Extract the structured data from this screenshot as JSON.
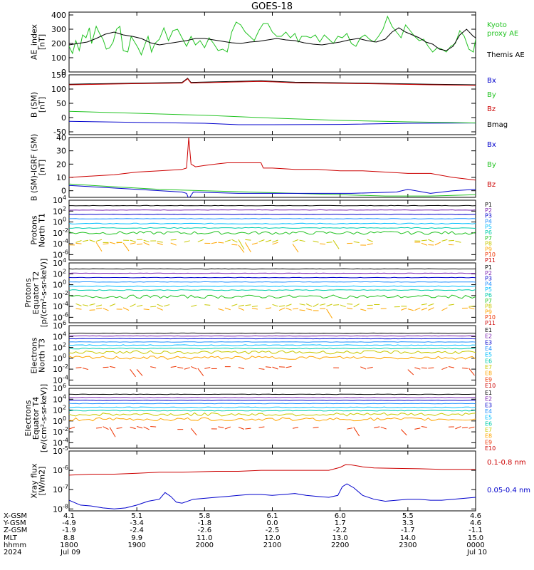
{
  "title": "GOES-18",
  "chart_data": [
    {
      "id": "ae",
      "type": "line",
      "ylabel": [
        "AE_index",
        "[nT]"
      ],
      "ylim": [
        0,
        420
      ],
      "yticks": [
        0,
        100,
        200,
        300,
        400
      ],
      "ytick_labels": [
        "0",
        "100",
        "200",
        "300",
        "400"
      ],
      "legend": [
        {
          "text": "Kyoto",
          "color": "#22c322"
        },
        {
          "text": "proxy AE",
          "color": "#22c322"
        },
        {
          "text": "Themis AE",
          "color": "#000000"
        }
      ],
      "series": [
        {
          "name": "Kyoto proxy AE",
          "color": "#22c322",
          "x": [
            0,
            3,
            6,
            9,
            12,
            15,
            18,
            20,
            24,
            27,
            30,
            33,
            36,
            39,
            42,
            45,
            48,
            52,
            55,
            58,
            61,
            64,
            67,
            70,
            73,
            76,
            80,
            84,
            88,
            92,
            96,
            100,
            104,
            108,
            112,
            116,
            120,
            124,
            128,
            132,
            136,
            140,
            144,
            148,
            152,
            156,
            160,
            164,
            168,
            172,
            176,
            180,
            184,
            188,
            192,
            196,
            200,
            203,
            206,
            210,
            214,
            218,
            222,
            226,
            230,
            234,
            238,
            242,
            246,
            250,
            254,
            258,
            262,
            266,
            270,
            274,
            278,
            282,
            286,
            290,
            294,
            298,
            302,
            306,
            310,
            314,
            318,
            322,
            326,
            330,
            334,
            338,
            342,
            346,
            350,
            354,
            358,
            360
          ],
          "y": [
            180,
            130,
            220,
            150,
            260,
            240,
            310,
            200,
            320,
            270,
            230,
            160,
            170,
            210,
            300,
            320,
            150,
            140,
            250,
            210,
            170,
            120,
            190,
            250,
            140,
            200,
            230,
            310,
            220,
            290,
            300,
            240,
            180,
            250,
            190,
            220,
            170,
            240,
            200,
            150,
            160,
            140,
            280,
            350,
            330,
            280,
            250,
            220,
            290,
            340,
            340,
            280,
            250,
            250,
            280,
            240,
            270,
            210,
            250,
            250,
            240,
            260,
            210,
            260,
            230,
            200,
            250,
            240,
            270,
            200,
            180,
            240,
            260,
            230,
            210,
            250,
            300,
            390,
            320,
            280,
            240,
            330,
            290,
            250,
            220,
            230,
            180,
            140,
            170,
            160,
            140,
            180,
            200,
            290,
            250,
            160,
            140,
            230
          ]
        },
        {
          "name": "Themis AE",
          "color": "#000000",
          "x": [
            0,
            8,
            16,
            24,
            32,
            40,
            48,
            56,
            64,
            72,
            80,
            88,
            96,
            104,
            112,
            120,
            128,
            136,
            144,
            152,
            160,
            168,
            176,
            184,
            192,
            200,
            208,
            216,
            224,
            232,
            240,
            248,
            256,
            264,
            272,
            280,
            286,
            292,
            298,
            304,
            310,
            316,
            322,
            328,
            334,
            340,
            346,
            352,
            358,
            360
          ],
          "y": [
            190,
            200,
            210,
            235,
            265,
            280,
            260,
            250,
            235,
            205,
            190,
            200,
            210,
            220,
            235,
            235,
            225,
            215,
            205,
            200,
            210,
            215,
            225,
            235,
            225,
            220,
            205,
            195,
            190,
            200,
            210,
            225,
            235,
            220,
            210,
            230,
            280,
            310,
            280,
            260,
            240,
            210,
            195,
            160,
            150,
            180,
            260,
            300,
            250,
            240
          ]
        }
      ]
    },
    {
      "id": "bsm",
      "type": "line",
      "ylabel": [
        "B (SM)",
        "[nT]"
      ],
      "ylim": [
        -60,
        150
      ],
      "yticks": [
        -50,
        0,
        50,
        100,
        150
      ],
      "ytick_labels": [
        "-50",
        "0",
        "50",
        "100",
        "150"
      ],
      "legend": [
        {
          "text": "Bx",
          "color": "#0000cc"
        },
        {
          "text": "By",
          "color": "#22c322"
        },
        {
          "text": "Bz",
          "color": "#cc0000"
        },
        {
          "text": "Bmag",
          "color": "#000000"
        }
      ],
      "series": [
        {
          "name": "Bx",
          "color": "#0000cc",
          "x": [
            0,
            60,
            120,
            150,
            180,
            240,
            300,
            360
          ],
          "y": [
            -13,
            -17,
            -20,
            -25,
            -25,
            -24,
            -20,
            -19
          ]
        },
        {
          "name": "By",
          "color": "#22c322",
          "x": [
            0,
            60,
            120,
            180,
            240,
            300,
            360
          ],
          "y": [
            22,
            15,
            8,
            -2,
            -10,
            -15,
            -19
          ]
        },
        {
          "name": "Bmag",
          "color": "#000000",
          "x": [
            0,
            60,
            100,
            105,
            108,
            115,
            170,
            200,
            260,
            320,
            360
          ],
          "y": [
            117,
            121,
            123,
            138,
            123,
            124,
            129,
            124,
            121,
            117,
            115
          ]
        },
        {
          "name": "Bz",
          "color": "#cc0000",
          "x": [
            0,
            60,
            100,
            105,
            108,
            115,
            170,
            200,
            260,
            320,
            360
          ],
          "y": [
            115,
            119,
            121,
            136,
            121,
            122,
            127,
            122,
            119,
            115,
            113
          ]
        }
      ]
    },
    {
      "id": "bigrf",
      "type": "line",
      "ylabel": [
        "B (SM)-IGRF (SM)",
        "[nT]"
      ],
      "ylim": [
        -5,
        40
      ],
      "yticks": [
        0,
        10,
        20,
        30,
        40
      ],
      "ytick_labels": [
        "0",
        "10",
        "20",
        "30",
        "40"
      ],
      "legend": [
        {
          "text": "Bx",
          "color": "#0000cc"
        },
        {
          "text": "By",
          "color": "#22c322"
        },
        {
          "text": "Bz",
          "color": "#cc0000"
        }
      ],
      "series": [
        {
          "name": "Bz",
          "color": "#cc0000",
          "x": [
            0,
            20,
            40,
            60,
            80,
            100,
            104,
            106,
            108,
            112,
            120,
            130,
            140,
            160,
            170,
            172,
            180,
            200,
            220,
            240,
            260,
            280,
            300,
            320,
            340,
            350,
            360
          ],
          "y": [
            10,
            11,
            12,
            14,
            15,
            16,
            17,
            40,
            20,
            18,
            19,
            20,
            21,
            21,
            21,
            17,
            17,
            16,
            16,
            15,
            15,
            14,
            13,
            13,
            10,
            9,
            8
          ]
        },
        {
          "name": "By",
          "color": "#22c322",
          "x": [
            0,
            40,
            80,
            120,
            160,
            200,
            240,
            280,
            320,
            360
          ],
          "y": [
            5,
            3,
            1,
            0,
            -1,
            -2,
            -3,
            -4,
            -4,
            -3
          ]
        },
        {
          "name": "Bx",
          "color": "#0000cc",
          "x": [
            0,
            60,
            100,
            104,
            106,
            110,
            150,
            200,
            250,
            290,
            300,
            320,
            340,
            360
          ],
          "y": [
            4,
            1,
            -1,
            -2,
            -6,
            -1,
            -2,
            -2,
            -2,
            -1,
            1,
            -2,
            0,
            1
          ]
        }
      ]
    },
    {
      "id": "protons-t1",
      "type": "line",
      "log": true,
      "ylabel": [
        "Protons",
        "North T1"
      ],
      "ylim_exp": [
        -7,
        4
      ],
      "ytick_exps": [
        -6,
        -4,
        -2,
        0,
        2,
        4
      ],
      "ytick_labels": [
        "10",
        "10",
        "10",
        "10",
        "10",
        "10"
      ],
      "ytick_sups": [
        "-6",
        "-4",
        "-2",
        "0",
        "2",
        "4"
      ],
      "legend": [
        "P1",
        "P2",
        "P3",
        "P4",
        "P5",
        "P6",
        "P7",
        "P8",
        "P9",
        "P10",
        "P11"
      ],
      "channel_colors": [
        "#000000",
        "#7a1fb0",
        "#0000cc",
        "#1e90ff",
        "#00bfff",
        "#00ccaa",
        "#22c322",
        "#c8c800",
        "#ffa500",
        "#ee3300",
        "#cc0000"
      ],
      "channel_levels_exp": [
        3.0,
        2.2,
        1.4,
        0.6,
        -0.3,
        -1.1,
        -2.0,
        -3.5,
        -4.0,
        null,
        null
      ]
    },
    {
      "id": "protons-t2",
      "type": "line",
      "log": true,
      "ylabel": [
        "Protons",
        "Equator T2",
        "[p/(cm²-s-sr-keV)]"
      ],
      "ylim_exp": [
        -7,
        4
      ],
      "ytick_exps": [
        -6,
        -4,
        -2,
        0,
        2,
        4
      ],
      "ytick_labels": [
        "10",
        "10",
        "10",
        "10",
        "10",
        "10"
      ],
      "ytick_sups": [
        "-6",
        "-4",
        "-2",
        "0",
        "2",
        "4"
      ],
      "legend": [
        "P1",
        "P2",
        "P3",
        "P4",
        "P5",
        "P6",
        "P7",
        "P8",
        "P9",
        "P10",
        "P11"
      ],
      "channel_colors": [
        "#000000",
        "#7a1fb0",
        "#0000cc",
        "#1e90ff",
        "#00bfff",
        "#00ccaa",
        "#22c322",
        "#c8c800",
        "#ffa500",
        "#ee3300",
        "#cc0000"
      ],
      "channel_levels_exp": [
        2.9,
        2.1,
        1.3,
        0.5,
        -0.3,
        -1.0,
        -2.2,
        -3.8,
        -4.5,
        null,
        null
      ]
    },
    {
      "id": "electrons-t3",
      "type": "line",
      "log": true,
      "ylabel": [
        "Electrons",
        "North T3"
      ],
      "ylim_exp": [
        -5,
        6
      ],
      "ytick_exps": [
        -4,
        -2,
        0,
        2,
        4,
        6
      ],
      "ytick_labels": [
        "10",
        "10",
        "10",
        "10",
        "10",
        "10"
      ],
      "ytick_sups": [
        "-4",
        "-2",
        "0",
        "2",
        "4",
        "6"
      ],
      "legend": [
        "E1",
        "E2",
        "E3",
        "E4",
        "E5",
        "E6",
        "E7",
        "E8",
        "E9",
        "E10"
      ],
      "channel_colors": [
        "#000000",
        "#7a1fb0",
        "#0000cc",
        "#1e90ff",
        "#00bfff",
        "#00ccaa",
        "#c8c800",
        "#ffa500",
        "#ee3300",
        "#cc0000"
      ],
      "channel_levels_exp": [
        4.6,
        4.1,
        3.6,
        3.0,
        2.4,
        1.8,
        1.1,
        0.1,
        -1.8,
        null
      ]
    },
    {
      "id": "electrons-t4",
      "type": "line",
      "log": true,
      "ylabel": [
        "Electrons",
        "Equator T4",
        "[e/(cm²-s-sr-keV)]"
      ],
      "ylim_exp": [
        -5,
        6
      ],
      "ytick_exps": [
        -4,
        -2,
        0,
        2,
        4,
        6
      ],
      "ytick_labels": [
        "10",
        "10",
        "10",
        "10",
        "10",
        "10"
      ],
      "ytick_sups": [
        "-4",
        "-2",
        "0",
        "2",
        "4",
        "6"
      ],
      "legend": [
        "E1",
        "E2",
        "E3",
        "E4",
        "E5",
        "E6",
        "E7",
        "E8",
        "E9",
        "E10"
      ],
      "channel_colors": [
        "#000000",
        "#7a1fb0",
        "#0000cc",
        "#1e90ff",
        "#00bfff",
        "#00ccaa",
        "#c8c800",
        "#ffa500",
        "#ee3300",
        "#cc0000"
      ],
      "channel_levels_exp": [
        4.9,
        4.3,
        3.8,
        3.2,
        2.5,
        1.9,
        1.2,
        0.3,
        -1.3,
        null
      ]
    },
    {
      "id": "xray",
      "type": "line",
      "log": true,
      "ylabel": [
        "Xray  flux",
        "[W/m2]"
      ],
      "ylim_exp": [
        -8.1,
        -5
      ],
      "ytick_exps": [
        -8,
        -7,
        -6,
        -5
      ],
      "ytick_labels": [
        "10",
        "10",
        "10",
        "10"
      ],
      "ytick_sups": [
        "-8",
        "-7",
        "-6",
        "-5"
      ],
      "legend": [
        {
          "text": "0.1-0.8 nm",
          "color": "#cc0000"
        },
        {
          "text": "0.05-0.4 nm",
          "color": "#0000cc"
        }
      ],
      "series": [
        {
          "name": "0.1-0.8 nm",
          "color": "#cc0000",
          "x": [
            0,
            20,
            40,
            60,
            80,
            100,
            130,
            150,
            170,
            190,
            210,
            230,
            240,
            245,
            250,
            260,
            270,
            290,
            310,
            330,
            350,
            360
          ],
          "y": [
            -6.25,
            -6.2,
            -6.2,
            -6.15,
            -6.1,
            -6.1,
            -6.05,
            -6.05,
            -6.0,
            -6.0,
            -6.0,
            -6.0,
            -5.85,
            -5.7,
            -5.72,
            -5.82,
            -5.88,
            -5.9,
            -5.92,
            -5.95,
            -5.95,
            -5.95
          ]
        },
        {
          "name": "0.05-0.4 nm",
          "color": "#0000cc",
          "x": [
            0,
            10,
            20,
            30,
            40,
            50,
            60,
            70,
            80,
            85,
            90,
            95,
            100,
            110,
            120,
            130,
            140,
            150,
            160,
            170,
            180,
            190,
            200,
            210,
            220,
            230,
            238,
            242,
            246,
            252,
            260,
            270,
            280,
            290,
            300,
            310,
            320,
            330,
            340,
            350,
            360
          ],
          "y": [
            -7.55,
            -7.8,
            -7.85,
            -7.95,
            -8.0,
            -7.95,
            -7.8,
            -7.6,
            -7.5,
            -7.15,
            -7.35,
            -7.65,
            -7.7,
            -7.5,
            -7.45,
            -7.4,
            -7.35,
            -7.3,
            -7.25,
            -7.25,
            -7.3,
            -7.25,
            -7.2,
            -7.3,
            -7.35,
            -7.4,
            -7.3,
            -6.85,
            -6.7,
            -6.9,
            -7.3,
            -7.5,
            -7.6,
            -7.55,
            -7.5,
            -7.5,
            -7.55,
            -7.55,
            -7.5,
            -7.45,
            -7.4
          ]
        }
      ]
    }
  ],
  "footer": {
    "row_labels": [
      "X-GSM",
      "Y-GSM",
      "Z-GSM",
      "MLT",
      "hhmm",
      "2024"
    ],
    "columns": [
      [
        "4.1",
        "-4.9",
        "-1.9",
        "8.8",
        "1800",
        "Jul 09"
      ],
      [
        "5.1",
        "-3.4",
        "-2.4",
        "9.9",
        "1900",
        ""
      ],
      [
        "5.8",
        "-1.8",
        "-2.6",
        "11.0",
        "2000",
        ""
      ],
      [
        "6.1",
        "0.0",
        "-2.5",
        "12.0",
        "2100",
        ""
      ],
      [
        "6.0",
        "1.7",
        "-2.2",
        "13.0",
        "2200",
        ""
      ],
      [
        "5.5",
        "3.3",
        "-1.7",
        "14.0",
        "2300",
        ""
      ],
      [
        "4.6",
        "4.6",
        "-1.1",
        "15.0",
        "0000",
        "Jul 10"
      ]
    ]
  }
}
